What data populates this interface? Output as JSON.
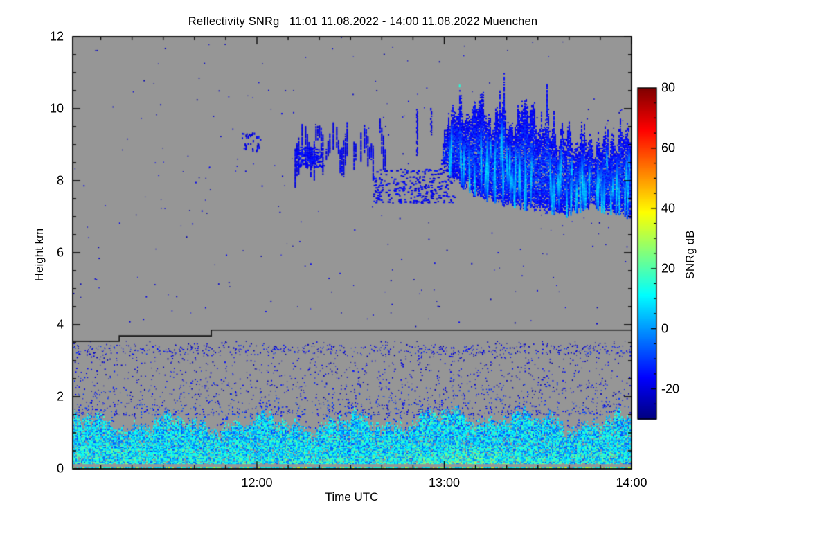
{
  "chart_data": {
    "type": "heatmap",
    "title": "Reflectivity SNRg   11:01 11.08.2022 - 14:00 11.08.2022 Muenchen",
    "xlabel": "Time UTC",
    "ylabel": "Height km",
    "station": "Muenchen",
    "time_start": "11:01 11.08.2022",
    "time_end": "14:00 11.08.2022",
    "x_range_minutes": [
      0,
      179
    ],
    "x_ticks": [
      "12:00",
      "13:00",
      "14:00"
    ],
    "x_tick_minutes": [
      59,
      119,
      179
    ],
    "x_minor_first_minute": 9,
    "x_minor_step_minutes": 10,
    "ylim": [
      0,
      12
    ],
    "y_ticks": [
      12,
      10,
      8,
      6,
      4,
      2,
      0
    ],
    "y_minor_step_km": 0.5,
    "grid": false,
    "background_color": "#969696",
    "frame_color": "#000000",
    "colorbar": {
      "label": "SNRg dB",
      "range": [
        -30,
        80
      ],
      "ticks": [
        80,
        60,
        40,
        20,
        0,
        -20
      ],
      "minor_step_db": 5,
      "colormap": "jet"
    },
    "melting_layer_line": {
      "color": "#141414",
      "points_min_km": [
        [
          0,
          3.54
        ],
        [
          14.9,
          3.54
        ],
        [
          14.9,
          3.69
        ],
        [
          44.4,
          3.69
        ],
        [
          44.4,
          3.85
        ],
        [
          179,
          3.85
        ]
      ]
    },
    "features": {
      "speckle_layers": [
        {
          "name": "free-troposphere-noise",
          "t": [
            0,
            179
          ],
          "h": [
            3.95,
            12
          ],
          "count": 260,
          "db": [
            -26,
            -16
          ],
          "size": [
            1,
            2
          ],
          "bottom_weight": 1
        },
        {
          "name": "mid-level-noise",
          "t": [
            0,
            179
          ],
          "h": [
            1.5,
            3.55
          ],
          "count": 1750,
          "db": [
            -26,
            -6
          ],
          "size": [
            1,
            2
          ],
          "bottom_weight": 1.5
        },
        {
          "name": "below-line-band",
          "t": [
            0,
            179
          ],
          "h": [
            3.18,
            3.45
          ],
          "count": 420,
          "db": [
            -25,
            -10
          ],
          "size": [
            1,
            2
          ],
          "bottom_weight": 1
        }
      ],
      "boundary_layer": {
        "h_bottom": 0.17,
        "top_mean": 1.36,
        "top_amp": 0.16,
        "bump": {
          "t": 127,
          "sigma": 13,
          "amp": 0.2
        },
        "db": [
          -10,
          20
        ],
        "low_boost": 9,
        "db_cap": 42,
        "hot_spot": {
          "t": 125,
          "sigma": 10,
          "h_max": 0.6,
          "db_boost": 20
        },
        "ground_row": {
          "h": 0.05,
          "prob": 0.8,
          "db": [
            2,
            38
          ]
        },
        "clear_gap_km": [
          0.07,
          0.17
        ]
      },
      "clouds": {
        "fragment": {
          "t": [
            54,
            60
          ],
          "h": [
            8.85,
            9.35
          ],
          "count": 34,
          "db": [
            -23,
            -14
          ]
        },
        "fallstreaks_a": {
          "t": [
            70.5,
            100
          ],
          "top_base": 9.2,
          "top_amp": 0.4,
          "len": [
            0.3,
            1.1
          ],
          "db": [
            -23,
            -14
          ],
          "col_prob": 0.78,
          "blob": {
            "t": [
              71,
              80
            ],
            "h": [
              8.4,
              8.95
            ],
            "count": 170,
            "db": [
              -21,
              -13
            ]
          }
        },
        "blob_b": {
          "t": [
            96,
            122
          ],
          "h": [
            7.4,
            8.35
          ],
          "count": 300,
          "db": [
            -22,
            -13
          ]
        },
        "plumes": [
          {
            "t": 110,
            "h": [
              8.7,
              10.0
            ]
          },
          {
            "t": 114.5,
            "h": [
              9.3,
              10.05
            ]
          },
          {
            "t": 120,
            "h": [
              8.8,
              9.9
            ]
          }
        ],
        "plume_db": [
          -22,
          -15
        ],
        "green_dot": {
          "t": 123.7,
          "h": 10.67,
          "db": 15
        },
        "main": {
          "t": [
            118,
            179
          ],
          "top_profile": [
            [
              118,
              9.0
            ],
            [
              121,
              9.9
            ],
            [
              124,
              10.3
            ],
            [
              126,
              9.7
            ],
            [
              128,
              10.1
            ],
            [
              131,
              10.35
            ],
            [
              134,
              9.5
            ],
            [
              137,
              10.2
            ],
            [
              140,
              9.4
            ],
            [
              143,
              9.95
            ],
            [
              146,
              10.2
            ],
            [
              149,
              9.4
            ],
            [
              152,
              9.8
            ],
            [
              155,
              9.15
            ],
            [
              158,
              9.5
            ],
            [
              161,
              9.0
            ],
            [
              164,
              9.4
            ],
            [
              167,
              8.9
            ],
            [
              170,
              9.3
            ],
            [
              173,
              9.05
            ],
            [
              176,
              9.45
            ],
            [
              179,
              9.3
            ]
          ],
          "base_profile": [
            [
              118,
              8.55
            ],
            [
              122,
              8.1
            ],
            [
              126,
              7.8
            ],
            [
              130,
              7.6
            ],
            [
              134,
              7.5
            ],
            [
              138,
              7.4
            ],
            [
              142,
              7.35
            ],
            [
              146,
              7.25
            ],
            [
              150,
              7.2
            ],
            [
              154,
              7.15
            ],
            [
              158,
              7.1
            ],
            [
              162,
              7.25
            ],
            [
              166,
              7.35
            ],
            [
              170,
              7.2
            ],
            [
              174,
              7.15
            ],
            [
              179,
              7.05
            ]
          ],
          "db": [
            -21,
            -6
          ],
          "bright_streaks": 65,
          "streak_db": [
            -13,
            3
          ]
        }
      }
    }
  }
}
